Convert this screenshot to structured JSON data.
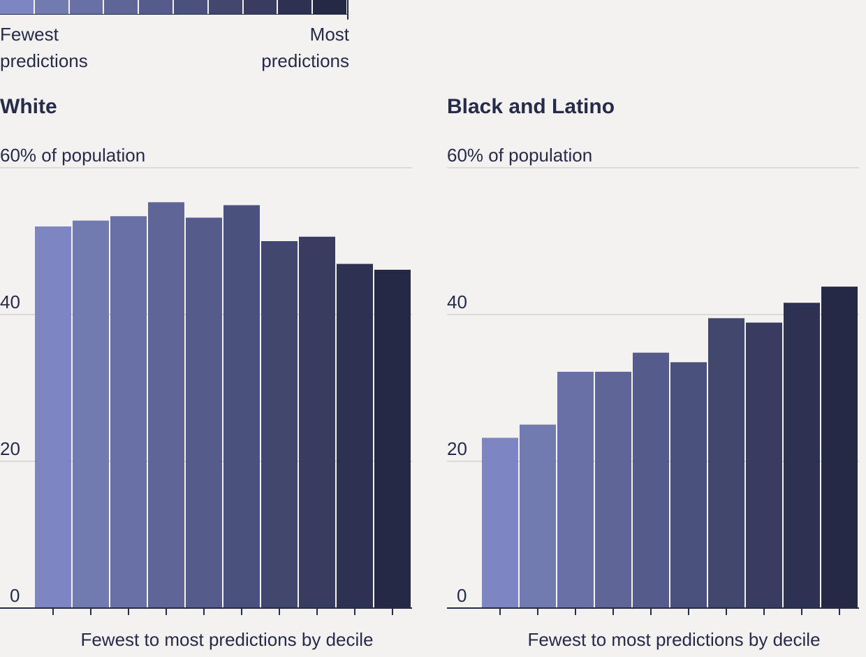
{
  "legend": {
    "left_label": "Fewest\npredictions",
    "right_label": "Most\npredictions",
    "colors": [
      "#7d86c0",
      "#717bb0",
      "#6870a5",
      "#5f6697",
      "#555c8b",
      "#4a517d",
      "#41476d",
      "#373c60",
      "#2d3253",
      "#252946"
    ]
  },
  "chart_data": [
    {
      "type": "bar",
      "title": "White",
      "xlabel": "Fewest to most predictions by decile",
      "ylabel": "",
      "ylim": [
        0,
        60
      ],
      "ytick_labels": [
        "0",
        "20",
        "40",
        "60% of population"
      ],
      "yticks": [
        0,
        20,
        40,
        60
      ],
      "values": [
        52,
        52.8,
        53.4,
        55.3,
        53.2,
        54.9,
        50,
        50.6,
        46.9,
        46.1
      ],
      "colors": [
        "#7d86c0",
        "#717bb0",
        "#6870a5",
        "#5f6697",
        "#555c8b",
        "#4a517d",
        "#41476d",
        "#373c60",
        "#2d3253",
        "#252946"
      ]
    },
    {
      "type": "bar",
      "title": "Black and Latino",
      "xlabel": "Fewest to most predictions by decile",
      "ylabel": "",
      "ylim": [
        0,
        60
      ],
      "ytick_labels": [
        "0",
        "20",
        "40",
        "60% of population"
      ],
      "yticks": [
        0,
        20,
        40,
        60
      ],
      "values": [
        23.2,
        25,
        32.2,
        32.2,
        34.8,
        33.5,
        39.5,
        38.9,
        41.6,
        43.8
      ],
      "colors": [
        "#7d86c0",
        "#717bb0",
        "#6870a5",
        "#5f6697",
        "#555c8b",
        "#4a517d",
        "#41476d",
        "#373c60",
        "#2d3253",
        "#252946"
      ]
    }
  ]
}
